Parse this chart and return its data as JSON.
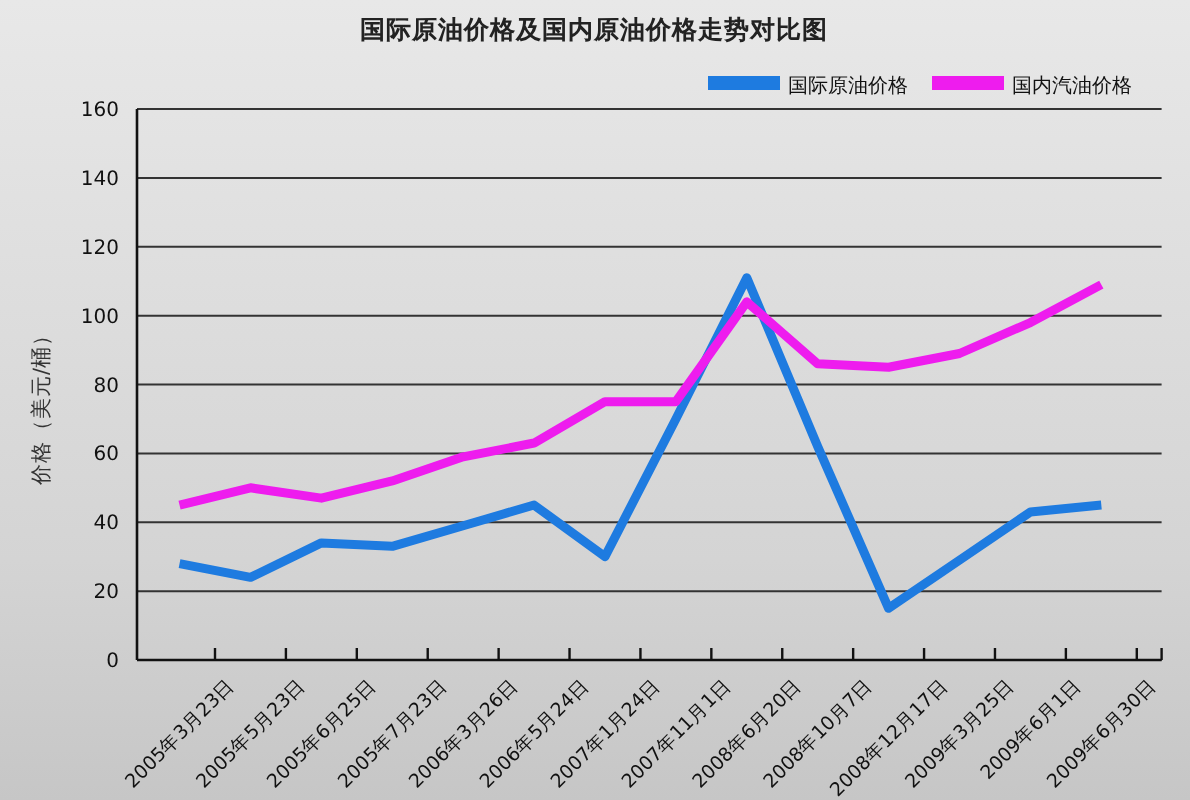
{
  "chart_data": {
    "type": "line",
    "title": "国际原油价格及国内原油价格走势对比图",
    "ylabel": "价格（美元/桶）",
    "categories": [
      "2005年3月23日",
      "2005年5月23日",
      "2005年6月25日",
      "2005年7月23日",
      "2006年3月26日",
      "2006年5月24日",
      "2007年1月24日",
      "2007年11月1日",
      "2008年6月20日",
      "2008年10月7日",
      "2008年12月17日",
      "2009年3月25日",
      "2009年6月1日",
      "2009年6月30日"
    ],
    "series": [
      {
        "name": "国际原油价格",
        "color": "#1e7be0",
        "values": [
          28,
          24,
          34,
          33,
          39,
          45,
          30,
          70,
          111,
          62,
          15,
          29,
          43,
          45
        ]
      },
      {
        "name": "国内汽油价格",
        "color": "#ee1cee",
        "values": [
          45,
          50,
          47,
          52,
          59,
          63,
          75,
          75,
          104,
          86,
          85,
          89,
          98,
          109
        ]
      }
    ],
    "ylim": [
      0,
      160
    ],
    "yticks": [
      0,
      20,
      40,
      60,
      80,
      100,
      120,
      140,
      160
    ],
    "grid": "y",
    "legend": "top right",
    "line_style": "solid"
  }
}
